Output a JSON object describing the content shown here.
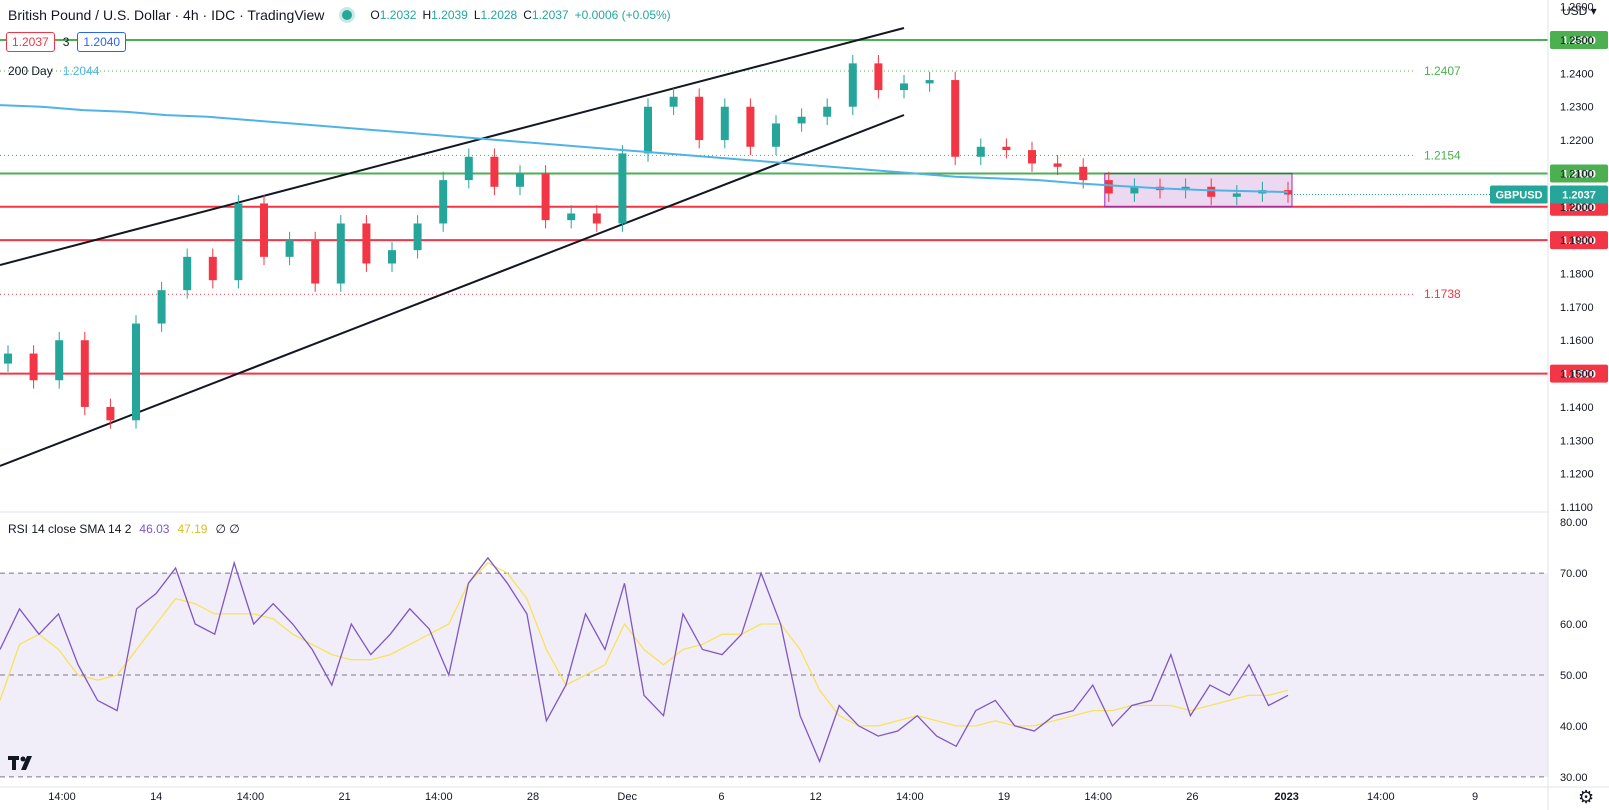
{
  "header": {
    "title": "British Pound / U.S. Dollar · 4h · IDC · TradingView",
    "ohlc": [
      {
        "k": "O",
        "v": "1.2032"
      },
      {
        "k": "H",
        "v": "1.2039"
      },
      {
        "k": "L",
        "v": "1.2028"
      },
      {
        "k": "C",
        "v": "1.2037"
      },
      {
        "k": "",
        "v": "+0.0006 (+0.05%)"
      }
    ],
    "sell_price": "1.2037",
    "spread": "3",
    "buy_price": "1.2040",
    "currency": "USD"
  },
  "ma": {
    "label": "200 Day",
    "value": "1.2044",
    "color": "#4fb3e8"
  },
  "rsi": {
    "label": "RSI 14 close SMA 14 2",
    "rsi_value": "46.03",
    "sma_value": "47.19",
    "extra": "∅ ∅",
    "rsi_color": "#7e57c2",
    "sma_color": "#f6e35a"
  },
  "icons": {
    "logo": "tradingview-logo-icon",
    "settings": "gear-icon"
  },
  "chart_data": [
    {
      "type": "line",
      "title": "British Pound / U.S. Dollar · 4h · IDC · TradingView",
      "ylim": [
        1.1085,
        1.262
      ],
      "y_ticks": [
        "1.2600",
        "1.2500",
        "1.2400",
        "1.2300",
        "1.2200",
        "1.2100",
        "1.2000",
        "1.1900",
        "1.1800",
        "1.1700",
        "1.1600",
        "1.1500",
        "1.1400",
        "1.1300",
        "1.1200",
        "1.1100"
      ],
      "x_ticks": [
        "14:00",
        "14",
        "14:00",
        "21",
        "14:00",
        "28",
        "Dec",
        "6",
        "12",
        "14:00",
        "19",
        "14:00",
        "26",
        "2023",
        "14:00",
        "9"
      ],
      "series": [
        {
          "name": "200 Day",
          "values": [
            1.2305,
            1.23,
            1.229,
            1.2285,
            1.2275,
            1.227,
            1.226,
            1.225,
            1.224,
            1.223,
            1.222,
            1.221,
            1.22,
            1.219,
            1.218,
            1.217,
            1.216,
            1.215,
            1.214,
            1.213,
            1.212,
            1.211,
            1.21,
            1.209,
            1.2085,
            1.208,
            1.207,
            1.2062,
            1.2055,
            1.205,
            1.2047,
            1.2044
          ]
        },
        {
          "name": "GBPUSD",
          "values": [
            1.156,
            1.148,
            1.16,
            1.14,
            1.136,
            1.165,
            1.175,
            1.185,
            1.178,
            1.201,
            1.185,
            1.19,
            1.177,
            1.195,
            1.183,
            1.187,
            1.195,
            1.208,
            1.215,
            1.206,
            1.21,
            1.196,
            1.198,
            1.195,
            1.216,
            1.23,
            1.233,
            1.22,
            1.23,
            1.218,
            1.225,
            1.227,
            1.23,
            1.243,
            1.235,
            1.237,
            1.238,
            1.215,
            1.218,
            1.217,
            1.213,
            1.212,
            1.208,
            1.204,
            1.206,
            1.205,
            1.206,
            1.203,
            1.204,
            1.205,
            1.2037
          ]
        }
      ],
      "horizontal_levels": [
        {
          "label": "1.2500",
          "value": 1.25,
          "color": "#4caf50"
        },
        {
          "label": "1.2100",
          "value": 1.21,
          "color": "#4caf50"
        },
        {
          "label": "1.2000",
          "value": 1.2,
          "color": "#f23645"
        },
        {
          "label": "1.1900",
          "value": 1.19,
          "color": "#f23645"
        },
        {
          "label": "1.1500",
          "value": 1.15,
          "color": "#f23645"
        }
      ],
      "dotted_levels": [
        {
          "label": "1.2407",
          "value": 1.2407,
          "color": "#4caf50"
        },
        {
          "label": "1.2154",
          "value": 1.2154,
          "color": "#4caf50"
        },
        {
          "label": "1.1738",
          "value": 1.1738,
          "color": "#f23645"
        }
      ],
      "last_price_label": {
        "symbol": "GBPUSD",
        "value": "1.2037",
        "color": "#26a69a"
      },
      "range_box": {
        "from_index": 43,
        "to_index": 50,
        "top": 1.21,
        "bottom": 1.2,
        "color": "#9c27b0"
      }
    },
    {
      "type": "line",
      "title": "RSI 14 close SMA 14 2",
      "ylim": [
        28,
        82
      ],
      "y_ticks": [
        "80.00",
        "70.00",
        "60.00",
        "50.00",
        "40.00",
        "30.00"
      ],
      "bands": {
        "upper": 70,
        "middle": 50,
        "lower": 30
      },
      "series": [
        {
          "name": "RSI",
          "values": [
            55,
            63,
            58,
            62,
            52,
            45,
            43,
            63,
            66,
            71,
            60,
            58,
            72,
            60,
            64,
            60,
            55,
            48,
            60,
            54,
            58,
            63,
            59,
            50,
            68,
            73,
            68,
            62,
            41,
            48,
            62,
            55,
            68,
            46,
            42,
            62,
            55,
            54,
            58,
            70,
            60,
            42,
            33,
            44,
            40,
            38,
            39,
            42,
            38,
            36,
            43,
            45,
            40,
            39,
            42,
            43,
            48,
            40,
            44,
            45,
            54,
            42,
            48,
            46,
            52,
            44,
            46
          ]
        },
        {
          "name": "SMA",
          "values": [
            45,
            56,
            58,
            55,
            50,
            49,
            50,
            55,
            60,
            65,
            64,
            62,
            62,
            62,
            61,
            58,
            56,
            54,
            53,
            53,
            54,
            56,
            58,
            60,
            68,
            72,
            70,
            65,
            55,
            48,
            50,
            52,
            60,
            55,
            52,
            55,
            56,
            58,
            58,
            60,
            60,
            55,
            47,
            42,
            40,
            40,
            41,
            42,
            41,
            40,
            40,
            41,
            40,
            40,
            41,
            42,
            43,
            43,
            44,
            44,
            44,
            43,
            44,
            45,
            46,
            46,
            47
          ]
        }
      ]
    }
  ]
}
